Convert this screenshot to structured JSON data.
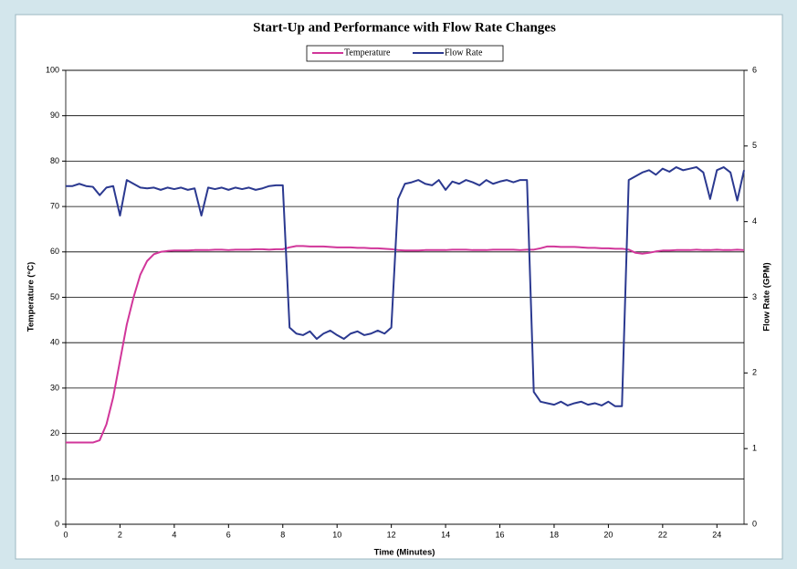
{
  "chart_data": {
    "type": "line",
    "title": "Start-Up and Performance with Flow Rate Changes",
    "x_label": "Time (Minutes)",
    "y_label": "Temperature (°C)",
    "y2_label": "Flow Rate (GPM)",
    "xlim": [
      0,
      25
    ],
    "xticks": [
      0,
      2,
      4,
      6,
      8,
      10,
      12,
      14,
      16,
      18,
      20,
      22,
      24
    ],
    "ylim": [
      0,
      100
    ],
    "yticks": [
      0,
      10,
      20,
      30,
      40,
      50,
      60,
      70,
      80,
      90,
      100
    ],
    "y2lim": [
      0,
      6
    ],
    "y2ticks": [
      0,
      1,
      2,
      3,
      4,
      5,
      6
    ],
    "grid": true,
    "legend": "top",
    "x": [
      0,
      0.25,
      0.5,
      0.75,
      1,
      1.25,
      1.5,
      1.75,
      2,
      2.25,
      2.5,
      2.75,
      3,
      3.25,
      3.5,
      3.75,
      4,
      4.25,
      4.5,
      4.75,
      5,
      5.25,
      5.5,
      5.75,
      6,
      6.25,
      6.5,
      6.75,
      7,
      7.25,
      7.5,
      7.75,
      8,
      8.25,
      8.5,
      8.75,
      9,
      9.25,
      9.5,
      9.75,
      10,
      10.25,
      10.5,
      10.75,
      11,
      11.25,
      11.5,
      11.75,
      12,
      12.25,
      12.5,
      12.75,
      13,
      13.25,
      13.5,
      13.75,
      14,
      14.25,
      14.5,
      14.75,
      15,
      15.25,
      15.5,
      15.75,
      16,
      16.25,
      16.5,
      16.75,
      17,
      17.25,
      17.5,
      17.75,
      18,
      18.25,
      18.5,
      18.75,
      19,
      19.25,
      19.5,
      19.75,
      20,
      20.25,
      20.5,
      20.75,
      21,
      21.25,
      21.5,
      21.75,
      22,
      22.25,
      22.5,
      22.75,
      23,
      23.25,
      23.5,
      23.75,
      24,
      24.25,
      24.5,
      24.75,
      25
    ],
    "series": [
      {
        "name": "Temperature",
        "color": "#d1369a",
        "axis": "y",
        "values": [
          18,
          18,
          18,
          18,
          18,
          18.5,
          22,
          28,
          36,
          44,
          50,
          55,
          58,
          59.5,
          60,
          60.2,
          60.3,
          60.3,
          60.3,
          60.4,
          60.4,
          60.4,
          60.5,
          60.5,
          60.4,
          60.5,
          60.5,
          60.5,
          60.6,
          60.6,
          60.5,
          60.6,
          60.6,
          61,
          61.3,
          61.3,
          61.2,
          61.2,
          61.2,
          61.1,
          61,
          61,
          61,
          60.9,
          60.9,
          60.8,
          60.8,
          60.7,
          60.6,
          60.4,
          60.3,
          60.3,
          60.3,
          60.4,
          60.4,
          60.4,
          60.4,
          60.5,
          60.5,
          60.5,
          60.4,
          60.4,
          60.4,
          60.5,
          60.5,
          60.5,
          60.5,
          60.4,
          60.5,
          60.5,
          60.8,
          61.2,
          61.2,
          61.1,
          61.1,
          61.1,
          61,
          60.9,
          60.9,
          60.8,
          60.8,
          60.7,
          60.7,
          60.5,
          59.8,
          59.6,
          59.8,
          60.1,
          60.3,
          60.3,
          60.4,
          60.4,
          60.4,
          60.5,
          60.4,
          60.4,
          60.5,
          60.4,
          60.4,
          60.5,
          60.4
        ]
      },
      {
        "name": "Flow Rate",
        "color": "#2b3990",
        "axis": "y2",
        "values": [
          4.47,
          4.47,
          4.5,
          4.47,
          4.46,
          4.35,
          4.45,
          4.47,
          4.08,
          4.55,
          4.5,
          4.45,
          4.44,
          4.45,
          4.42,
          4.45,
          4.43,
          4.45,
          4.42,
          4.44,
          4.08,
          4.45,
          4.43,
          4.45,
          4.42,
          4.45,
          4.43,
          4.45,
          4.42,
          4.44,
          4.47,
          4.48,
          4.48,
          2.6,
          2.52,
          2.5,
          2.55,
          2.45,
          2.52,
          2.56,
          2.5,
          2.45,
          2.52,
          2.55,
          2.5,
          2.52,
          2.56,
          2.52,
          2.6,
          4.3,
          4.5,
          4.52,
          4.55,
          4.5,
          4.48,
          4.55,
          4.42,
          4.53,
          4.5,
          4.55,
          4.52,
          4.48,
          4.55,
          4.5,
          4.53,
          4.55,
          4.52,
          4.55,
          4.55,
          1.75,
          1.62,
          1.6,
          1.58,
          1.62,
          1.57,
          1.6,
          1.62,
          1.58,
          1.6,
          1.57,
          1.62,
          1.56,
          1.56,
          4.55,
          4.6,
          4.65,
          4.68,
          4.62,
          4.7,
          4.66,
          4.72,
          4.68,
          4.7,
          4.72,
          4.65,
          4.3,
          4.68,
          4.72,
          4.65,
          4.28,
          4.68
        ]
      }
    ]
  }
}
